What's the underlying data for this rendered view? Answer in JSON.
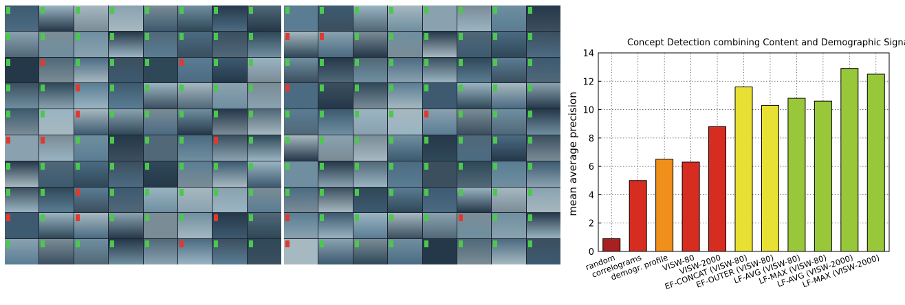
{
  "panels": [
    {
      "rows": [
        [
          "g",
          "g",
          "g",
          "g",
          "g",
          "g",
          "g",
          "g"
        ],
        [
          "g",
          "g",
          "g",
          "g",
          "g",
          "g",
          "g",
          "g"
        ],
        [
          "g",
          "r",
          "g",
          "g",
          "g",
          "r",
          "g",
          "g"
        ],
        [
          "g",
          "g",
          "r",
          "g",
          "g",
          "g",
          "g",
          "g"
        ],
        [
          "g",
          "g",
          "r",
          "g",
          "g",
          "g",
          "g",
          "g"
        ],
        [
          "r",
          "r",
          "g",
          "g",
          "g",
          "g",
          "r",
          "g"
        ],
        [
          "g",
          "g",
          "g",
          "g",
          "g",
          "g",
          "g",
          "g"
        ],
        [
          "g",
          "g",
          "r",
          "g",
          "g",
          "g",
          "g",
          "g"
        ],
        [
          "r",
          "g",
          "r",
          "g",
          "g",
          "g",
          "r",
          "g"
        ],
        [
          "g",
          "g",
          "g",
          "g",
          "g",
          "r",
          "g",
          "g"
        ]
      ]
    },
    {
      "rows": [
        [
          "g",
          "g",
          "g",
          "g",
          "g",
          "g",
          "g",
          "g"
        ],
        [
          "r",
          "r",
          "g",
          "g",
          "g",
          "g",
          "g",
          "g"
        ],
        [
          "g",
          "g",
          "g",
          "g",
          "g",
          "g",
          "g",
          "g"
        ],
        [
          "r",
          "g",
          "g",
          "g",
          "g",
          "g",
          "g",
          "g"
        ],
        [
          "g",
          "g",
          "g",
          "g",
          "r",
          "g",
          "g",
          "g"
        ],
        [
          "g",
          "g",
          "g",
          "g",
          "g",
          "g",
          "g",
          "g"
        ],
        [
          "g",
          "g",
          "g",
          "g",
          "g",
          "g",
          "g",
          "g"
        ],
        [
          "g",
          "g",
          "g",
          "g",
          "g",
          "g",
          "g",
          "g"
        ],
        [
          "r",
          "g",
          "g",
          "g",
          "g",
          "r",
          "g",
          "g"
        ],
        [
          "r",
          "g",
          "g",
          "g",
          "g",
          "g",
          "g",
          "g"
        ]
      ]
    }
  ],
  "tag_colors": {
    "g": "#4cc94c",
    "r": "#e03a2f"
  },
  "thumb_palette": [
    "#3d5a70",
    "#6f8fa0",
    "#2f4858",
    "#8aa2b0",
    "#4b6b82",
    "#9ab4c2",
    "#25384a",
    "#5a7d93",
    "#7a8c96",
    "#3b4f5f",
    "#a6b8c0",
    "#506878"
  ],
  "chart_data": {
    "type": "bar",
    "title": "Concept Detection combining Content and Demographic Signals",
    "ylabel": "mean average precision",
    "xlabel": "",
    "ylim": [
      0,
      14
    ],
    "yticks": [
      0,
      2,
      4,
      6,
      8,
      10,
      12,
      14
    ],
    "grid": true,
    "categories": [
      "random",
      "correlograms",
      "demogr. profile",
      "VISW-80",
      "VISW-2000",
      "EF-CONCAT (VISW-80)",
      "EF-OUTER (VISW-80)",
      "LF-AVG (VISW-80)",
      "LF-MAX (VISW-80)",
      "LF-AVG (VISW-2000)",
      "LF-MAX (VISW-2000)"
    ],
    "values": [
      0.9,
      5.0,
      6.5,
      6.3,
      8.8,
      11.6,
      10.3,
      10.8,
      10.6,
      12.9,
      12.5
    ],
    "colors": [
      "#a82020",
      "#d62d20",
      "#f0901a",
      "#d62d20",
      "#d62d20",
      "#e8e032",
      "#e8e032",
      "#98c83a",
      "#98c83a",
      "#98c83a",
      "#98c83a"
    ]
  }
}
